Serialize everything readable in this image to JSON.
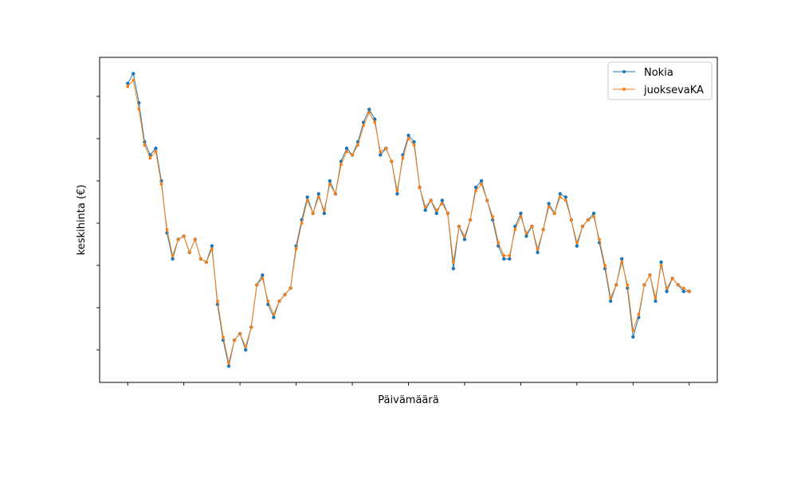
{
  "chart_data": {
    "type": "line",
    "title": "",
    "xlabel": "Päivämäärä",
    "ylabel": "keskihinta (€)",
    "x_tick_labels_visible": false,
    "y_tick_labels_visible": false,
    "x": [
      0,
      1,
      2,
      3,
      4,
      5,
      6,
      7,
      8,
      9,
      10,
      11,
      12,
      13,
      14,
      15,
      16,
      17,
      18,
      19,
      20,
      21,
      22,
      23,
      24,
      25,
      26,
      27,
      28,
      29,
      30,
      31,
      32,
      33,
      34,
      35,
      36,
      37,
      38,
      39,
      40,
      41,
      42,
      43,
      44,
      45,
      46,
      47,
      48,
      49,
      50,
      51,
      52,
      53,
      54,
      55,
      56,
      57,
      58,
      59,
      60,
      61,
      62,
      63,
      64,
      65,
      66,
      67,
      68,
      69,
      70,
      71,
      72,
      73,
      74,
      75,
      76,
      77,
      78,
      79,
      80,
      81,
      82,
      83,
      84,
      85,
      86,
      87,
      88,
      89,
      90,
      91,
      92,
      93,
      94,
      95,
      96,
      97,
      98,
      99,
      100
    ],
    "xlim": [
      -5,
      105
    ],
    "ylim": [
      0,
      100
    ],
    "series": [
      {
        "name": "Nokia",
        "color": "#1f77b4",
        "values": [
          92,
          95,
          86,
          74,
          70,
          72,
          62,
          46,
          38,
          44,
          45,
          40,
          44,
          38,
          37,
          42,
          24,
          13,
          5,
          13,
          15,
          10,
          17,
          30,
          33,
          24,
          20,
          25,
          27,
          29,
          42,
          50,
          57,
          52,
          58,
          52,
          62,
          58,
          68,
          72,
          70,
          74,
          80,
          84,
          81,
          70,
          72,
          68,
          58,
          70,
          76,
          74,
          60,
          53,
          56,
          52,
          56,
          52,
          35,
          48,
          44,
          50,
          60,
          62,
          56,
          50,
          42,
          38,
          38,
          48,
          52,
          45,
          48,
          40,
          47,
          55,
          52,
          58,
          57,
          50,
          42,
          48,
          50,
          52,
          43,
          35,
          25,
          30,
          38,
          29,
          14,
          20,
          30,
          33,
          25,
          37,
          28,
          32,
          30,
          28,
          28
        ]
      },
      {
        "name": "juoksevaKA",
        "color": "#ff7f0e",
        "values": [
          91,
          93,
          84,
          73,
          69,
          71,
          61,
          47,
          39,
          44,
          45,
          40,
          44,
          38,
          37,
          41,
          25,
          14,
          6,
          13,
          15,
          11,
          17,
          30,
          32,
          25,
          21,
          25,
          27,
          29,
          41,
          49,
          56,
          52,
          57,
          53,
          61,
          58,
          67,
          71,
          70,
          73,
          79,
          83,
          80,
          71,
          72,
          68,
          59,
          69,
          75,
          73,
          60,
          54,
          56,
          53,
          55,
          52,
          37,
          48,
          45,
          50,
          59,
          61,
          56,
          51,
          43,
          39,
          39,
          47,
          51,
          46,
          48,
          41,
          47,
          54,
          52,
          57,
          56,
          50,
          43,
          48,
          50,
          51,
          44,
          36,
          26,
          30,
          37,
          30,
          16,
          21,
          30,
          33,
          26,
          36,
          29,
          32,
          30,
          29,
          28
        ]
      }
    ],
    "legend": {
      "location": "top-right",
      "entries": [
        "Nokia",
        "juoksevaKA"
      ]
    },
    "grid": false
  }
}
